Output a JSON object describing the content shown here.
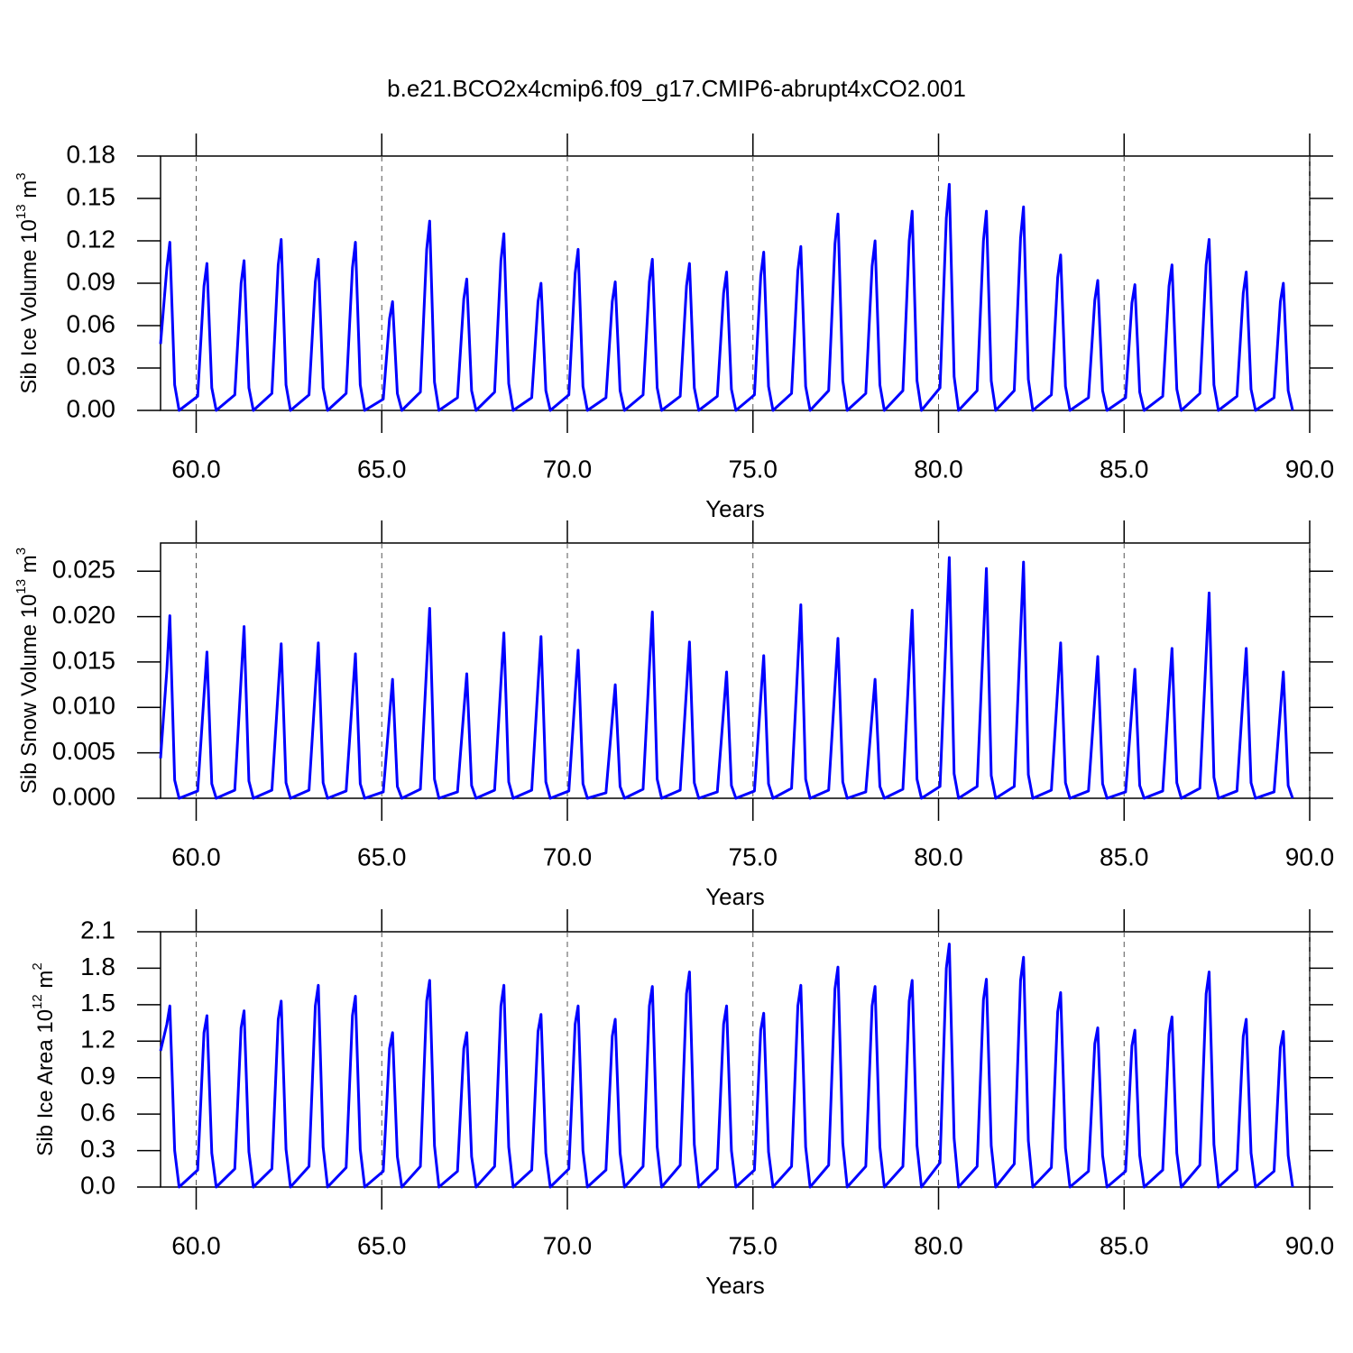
{
  "chart_data": [
    {
      "type": "line",
      "title": "b.e21.BCO2x4cmip6.f09_g17.CMIP6-abrupt4xCO2.001",
      "ylabel": [
        "Sib Ice Volume 10",
        "13",
        " m",
        "3"
      ],
      "xlabel": "Years",
      "xlim": [
        59.04,
        90.0
      ],
      "ylim": [
        0,
        0.18
      ],
      "grid": true,
      "color": "#0000ff",
      "xticks": [
        {
          "value": 60,
          "label": "60.0"
        },
        {
          "value": 65,
          "label": "65.0"
        },
        {
          "value": 70,
          "label": "70.0"
        },
        {
          "value": 75,
          "label": "75.0"
        },
        {
          "value": 80,
          "label": "80.0"
        },
        {
          "value": 85,
          "label": "85.0"
        },
        {
          "value": 90,
          "label": "90.0"
        }
      ],
      "yticks": [
        {
          "value": 0,
          "label": "0.00"
        },
        {
          "value": 0.03,
          "label": "0.03"
        },
        {
          "value": 0.06,
          "label": "0.06"
        },
        {
          "value": 0.09,
          "label": "0.09"
        },
        {
          "value": 0.12,
          "label": "0.12"
        },
        {
          "value": 0.15,
          "label": "0.15"
        },
        {
          "value": 0.18,
          "label": "0.18"
        }
      ],
      "x": [
        59.04,
        59.21,
        59.29,
        59.42,
        59.54,
        60.04,
        60.21,
        60.29,
        60.42,
        60.54,
        61.04,
        61.21,
        61.29,
        61.42,
        61.54,
        62.04,
        62.21,
        62.29,
        62.42,
        62.54,
        63.04,
        63.21,
        63.29,
        63.42,
        63.54,
        64.04,
        64.21,
        64.29,
        64.42,
        64.54,
        65.04,
        65.21,
        65.29,
        65.42,
        65.54,
        66.04,
        66.21,
        66.29,
        66.42,
        66.54,
        67.04,
        67.21,
        67.29,
        67.42,
        67.54,
        68.04,
        68.21,
        68.29,
        68.42,
        68.54,
        69.04,
        69.21,
        69.29,
        69.42,
        69.54,
        70.04,
        70.21,
        70.29,
        70.42,
        70.54,
        71.04,
        71.21,
        71.29,
        71.42,
        71.54,
        72.04,
        72.21,
        72.29,
        72.42,
        72.54,
        73.04,
        73.21,
        73.29,
        73.42,
        73.54,
        74.04,
        74.21,
        74.29,
        74.42,
        74.54,
        75.04,
        75.21,
        75.29,
        75.42,
        75.54,
        76.04,
        76.21,
        76.29,
        76.42,
        76.54,
        77.04,
        77.21,
        77.29,
        77.42,
        77.54,
        78.04,
        78.21,
        78.29,
        78.42,
        78.54,
        79.04,
        79.21,
        79.29,
        79.42,
        79.54,
        80.04,
        80.21,
        80.29,
        80.42,
        80.54,
        81.04,
        81.21,
        81.29,
        81.42,
        81.54,
        82.04,
        82.21,
        82.29,
        82.42,
        82.54,
        83.04,
        83.21,
        83.29,
        83.42,
        83.54,
        84.04,
        84.21,
        84.29,
        84.42,
        84.54,
        85.04,
        85.21,
        85.29,
        85.42,
        85.54,
        86.04,
        86.21,
        86.29,
        86.42,
        86.54,
        87.04,
        87.21,
        87.29,
        87.42,
        87.54,
        88.04,
        88.21,
        88.29,
        88.42,
        88.54,
        89.04,
        89.21,
        89.29,
        89.42,
        89.54
      ],
      "values": [
        0.047,
        0.101,
        0.119,
        0.018,
        0,
        0.01,
        0.088,
        0.104,
        0.016,
        0,
        0.011,
        0.09,
        0.106,
        0.016,
        0,
        0.012,
        0.103,
        0.121,
        0.018,
        0,
        0.011,
        0.091,
        0.107,
        0.016,
        0,
        0.012,
        0.101,
        0.119,
        0.018,
        0,
        0.008,
        0.065,
        0.077,
        0.012,
        0,
        0.013,
        0.114,
        0.134,
        0.02,
        0,
        0.009,
        0.079,
        0.093,
        0.014,
        0,
        0.013,
        0.106,
        0.125,
        0.019,
        0,
        0.009,
        0.077,
        0.09,
        0.014,
        0,
        0.011,
        0.097,
        0.114,
        0.017,
        0,
        0.009,
        0.077,
        0.091,
        0.014,
        0,
        0.011,
        0.091,
        0.107,
        0.016,
        0,
        0.01,
        0.088,
        0.104,
        0.016,
        0,
        0.01,
        0.083,
        0.098,
        0.015,
        0,
        0.011,
        0.095,
        0.112,
        0.017,
        0,
        0.012,
        0.099,
        0.116,
        0.017,
        0,
        0.014,
        0.118,
        0.139,
        0.021,
        0,
        0.012,
        0.102,
        0.12,
        0.018,
        0,
        0.014,
        0.12,
        0.141,
        0.021,
        0,
        0.016,
        0.136,
        0.16,
        0.024,
        0,
        0.014,
        0.12,
        0.141,
        0.021,
        0,
        0.014,
        0.122,
        0.144,
        0.022,
        0,
        0.011,
        0.094,
        0.11,
        0.017,
        0,
        0.009,
        0.078,
        0.092,
        0.014,
        0,
        0.009,
        0.076,
        0.089,
        0.013,
        0,
        0.01,
        0.088,
        0.103,
        0.015,
        0,
        0.012,
        0.103,
        0.121,
        0.018,
        0,
        0.01,
        0.083,
        0.098,
        0.015,
        0,
        0.009,
        0.077,
        0.09,
        0.014,
        0
      ]
    },
    {
      "type": "line",
      "ylabel": [
        "Sib Snow Volume 10",
        "13",
        " m",
        "3"
      ],
      "xlabel": "Years",
      "xlim": [
        59.04,
        90.0
      ],
      "ylim": [
        0,
        0.0281
      ],
      "grid": true,
      "color": "#0000ff",
      "xticks": [
        {
          "value": 60,
          "label": "60.0"
        },
        {
          "value": 65,
          "label": "65.0"
        },
        {
          "value": 70,
          "label": "70.0"
        },
        {
          "value": 75,
          "label": "75.0"
        },
        {
          "value": 80,
          "label": "80.0"
        },
        {
          "value": 85,
          "label": "85.0"
        },
        {
          "value": 90,
          "label": "90.0"
        }
      ],
      "yticks": [
        {
          "value": 0,
          "label": "0.000"
        },
        {
          "value": 0.005,
          "label": "0.005"
        },
        {
          "value": 0.01,
          "label": "0.010"
        },
        {
          "value": 0.015,
          "label": "0.015"
        },
        {
          "value": 0.02,
          "label": "0.020"
        },
        {
          "value": 0.025,
          "label": "0.025"
        }
      ],
      "x": [
        59.04,
        59.21,
        59.29,
        59.42,
        59.54,
        60.04,
        60.21,
        60.29,
        60.42,
        60.54,
        61.04,
        61.21,
        61.29,
        61.42,
        61.54,
        62.04,
        62.21,
        62.29,
        62.42,
        62.54,
        63.04,
        63.21,
        63.29,
        63.42,
        63.54,
        64.04,
        64.21,
        64.29,
        64.42,
        64.54,
        65.04,
        65.21,
        65.29,
        65.42,
        65.54,
        66.04,
        66.21,
        66.29,
        66.42,
        66.54,
        67.04,
        67.21,
        67.29,
        67.42,
        67.54,
        68.04,
        68.21,
        68.29,
        68.42,
        68.54,
        69.04,
        69.21,
        69.29,
        69.42,
        69.54,
        70.04,
        70.21,
        70.29,
        70.42,
        70.54,
        71.04,
        71.21,
        71.29,
        71.42,
        71.54,
        72.04,
        72.21,
        72.29,
        72.42,
        72.54,
        73.04,
        73.21,
        73.29,
        73.42,
        73.54,
        74.04,
        74.21,
        74.29,
        74.42,
        74.54,
        75.04,
        75.21,
        75.29,
        75.42,
        75.54,
        76.04,
        76.21,
        76.29,
        76.42,
        76.54,
        77.04,
        77.21,
        77.29,
        77.42,
        77.54,
        78.04,
        78.21,
        78.29,
        78.42,
        78.54,
        79.04,
        79.21,
        79.29,
        79.42,
        79.54,
        80.04,
        80.21,
        80.29,
        80.42,
        80.54,
        81.04,
        81.21,
        81.29,
        81.42,
        81.54,
        82.04,
        82.21,
        82.29,
        82.42,
        82.54,
        83.04,
        83.21,
        83.29,
        83.42,
        83.54,
        84.04,
        84.21,
        84.29,
        84.42,
        84.54,
        85.04,
        85.21,
        85.29,
        85.42,
        85.54,
        86.04,
        86.21,
        86.29,
        86.42,
        86.54,
        87.04,
        87.21,
        87.29,
        87.42,
        87.54,
        88.04,
        88.21,
        88.29,
        88.42,
        88.54,
        89.04,
        89.21,
        89.29,
        89.42,
        89.54
      ],
      "values": [
        0.0044,
        0.0141,
        0.0201,
        0.002,
        0,
        0.0008,
        0.0113,
        0.0161,
        0.0016,
        0,
        0.0009,
        0.0132,
        0.0189,
        0.0019,
        0,
        0.0009,
        0.0119,
        0.017,
        0.0017,
        0,
        0.0009,
        0.012,
        0.0171,
        0.0017,
        0,
        0.0008,
        0.0111,
        0.0159,
        0.0016,
        0,
        0.0007,
        0.0092,
        0.0131,
        0.0013,
        0,
        0.001,
        0.0146,
        0.0209,
        0.0021,
        0,
        0.0007,
        0.0096,
        0.0137,
        0.0014,
        0,
        0.0009,
        0.0127,
        0.0182,
        0.0018,
        0,
        0.0009,
        0.0125,
        0.0178,
        0.0018,
        0,
        0.0008,
        0.0114,
        0.0163,
        0.0016,
        0,
        0.0006,
        0.0088,
        0.0125,
        0.0013,
        0,
        0.001,
        0.0144,
        0.0205,
        0.0021,
        0,
        0.0009,
        0.012,
        0.0172,
        0.0017,
        0,
        0.0007,
        0.0097,
        0.0139,
        0.0014,
        0,
        0.0008,
        0.011,
        0.0157,
        0.0016,
        0,
        0.0011,
        0.0149,
        0.0213,
        0.0021,
        0,
        0.0009,
        0.0123,
        0.0176,
        0.0018,
        0,
        0.0007,
        0.0092,
        0.0131,
        0.0013,
        0,
        0.001,
        0.0145,
        0.0207,
        0.0021,
        0,
        0.0013,
        0.0186,
        0.0265,
        0.0027,
        0,
        0.0013,
        0.0177,
        0.0253,
        0.0025,
        0,
        0.0013,
        0.0182,
        0.026,
        0.0026,
        0,
        0.0009,
        0.012,
        0.0171,
        0.0017,
        0,
        0.0008,
        0.0109,
        0.0156,
        0.0016,
        0,
        0.0007,
        0.0099,
        0.0142,
        0.0014,
        0,
        0.0008,
        0.0116,
        0.0165,
        0.0017,
        0,
        0.0011,
        0.0158,
        0.0226,
        0.0023,
        0,
        0.0008,
        0.0116,
        0.0165,
        0.0017,
        0,
        0.0007,
        0.0097,
        0.0139,
        0.0014,
        0
      ]
    },
    {
      "type": "line",
      "ylabel": [
        "Sib Ice Area 10",
        "12",
        " m",
        "2"
      ],
      "xlabel": "Years",
      "xlim": [
        59.04,
        90.0
      ],
      "ylim": [
        0,
        2.1
      ],
      "grid": true,
      "color": "#0000ff",
      "xticks": [
        {
          "value": 60,
          "label": "60.0"
        },
        {
          "value": 65,
          "label": "65.0"
        },
        {
          "value": 70,
          "label": "70.0"
        },
        {
          "value": 75,
          "label": "75.0"
        },
        {
          "value": 80,
          "label": "80.0"
        },
        {
          "value": 85,
          "label": "85.0"
        },
        {
          "value": 90,
          "label": "90.0"
        }
      ],
      "yticks": [
        {
          "value": 0,
          "label": "0.0"
        },
        0.3,
        0.6,
        0.9,
        1.2,
        1.5,
        1.8,
        2.1
      ],
      "x": [
        59.04,
        59.21,
        59.29,
        59.42,
        59.54,
        60.04,
        60.21,
        60.29,
        60.42,
        60.54,
        61.04,
        61.21,
        61.29,
        61.42,
        61.54,
        62.04,
        62.21,
        62.29,
        62.42,
        62.54,
        63.04,
        63.21,
        63.29,
        63.42,
        63.54,
        64.04,
        64.21,
        64.29,
        64.42,
        64.54,
        65.04,
        65.21,
        65.29,
        65.42,
        65.54,
        66.04,
        66.21,
        66.29,
        66.42,
        66.54,
        67.04,
        67.21,
        67.29,
        67.42,
        67.54,
        68.04,
        68.21,
        68.29,
        68.42,
        68.54,
        69.04,
        69.21,
        69.29,
        69.42,
        69.54,
        70.04,
        70.21,
        70.29,
        70.42,
        70.54,
        71.04,
        71.21,
        71.29,
        71.42,
        71.54,
        72.04,
        72.21,
        72.29,
        72.42,
        72.54,
        73.04,
        73.21,
        73.29,
        73.42,
        73.54,
        74.04,
        74.21,
        74.29,
        74.42,
        74.54,
        75.04,
        75.21,
        75.29,
        75.42,
        75.54,
        76.04,
        76.21,
        76.29,
        76.42,
        76.54,
        77.04,
        77.21,
        77.29,
        77.42,
        77.54,
        78.04,
        78.21,
        78.29,
        78.42,
        78.54,
        79.04,
        79.21,
        79.29,
        79.42,
        79.54,
        80.04,
        80.21,
        80.29,
        80.42,
        80.54,
        81.04,
        81.21,
        81.29,
        81.42,
        81.54,
        82.04,
        82.21,
        82.29,
        82.42,
        82.54,
        83.04,
        83.21,
        83.29,
        83.42,
        83.54,
        84.04,
        84.21,
        84.29,
        84.42,
        84.54,
        85.04,
        85.21,
        85.29,
        85.42,
        85.54,
        86.04,
        86.21,
        86.29,
        86.42,
        86.54,
        87.04,
        87.21,
        87.29,
        87.42,
        87.54,
        88.04,
        88.21,
        88.29,
        88.42,
        88.54,
        89.04,
        89.21,
        89.29,
        89.42,
        89.54
      ],
      "values": [
        1.12,
        1.34,
        1.49,
        0.3,
        0,
        0.14,
        1.27,
        1.41,
        0.28,
        0,
        0.15,
        1.31,
        1.45,
        0.29,
        0,
        0.15,
        1.38,
        1.53,
        0.31,
        0,
        0.17,
        1.49,
        1.66,
        0.33,
        0,
        0.16,
        1.41,
        1.57,
        0.31,
        0,
        0.13,
        1.14,
        1.27,
        0.25,
        0,
        0.17,
        1.53,
        1.7,
        0.34,
        0,
        0.13,
        1.14,
        1.27,
        0.25,
        0,
        0.17,
        1.49,
        1.66,
        0.33,
        0,
        0.14,
        1.28,
        1.42,
        0.28,
        0,
        0.15,
        1.34,
        1.49,
        0.3,
        0,
        0.14,
        1.24,
        1.38,
        0.28,
        0,
        0.17,
        1.49,
        1.65,
        0.33,
        0,
        0.18,
        1.59,
        1.77,
        0.35,
        0,
        0.15,
        1.34,
        1.49,
        0.3,
        0,
        0.14,
        1.29,
        1.43,
        0.29,
        0,
        0.17,
        1.49,
        1.66,
        0.33,
        0,
        0.18,
        1.63,
        1.81,
        0.36,
        0,
        0.17,
        1.49,
        1.65,
        0.33,
        0,
        0.17,
        1.53,
        1.7,
        0.34,
        0,
        0.2,
        1.8,
        2.0,
        0.4,
        0,
        0.17,
        1.54,
        1.71,
        0.34,
        0,
        0.19,
        1.7,
        1.89,
        0.38,
        0,
        0.16,
        1.44,
        1.6,
        0.32,
        0,
        0.13,
        1.18,
        1.31,
        0.26,
        0,
        0.13,
        1.16,
        1.29,
        0.26,
        0,
        0.14,
        1.26,
        1.4,
        0.28,
        0,
        0.18,
        1.59,
        1.77,
        0.35,
        0,
        0.14,
        1.24,
        1.38,
        0.28,
        0,
        0.13,
        1.15,
        1.28,
        0.26,
        0
      ]
    }
  ]
}
